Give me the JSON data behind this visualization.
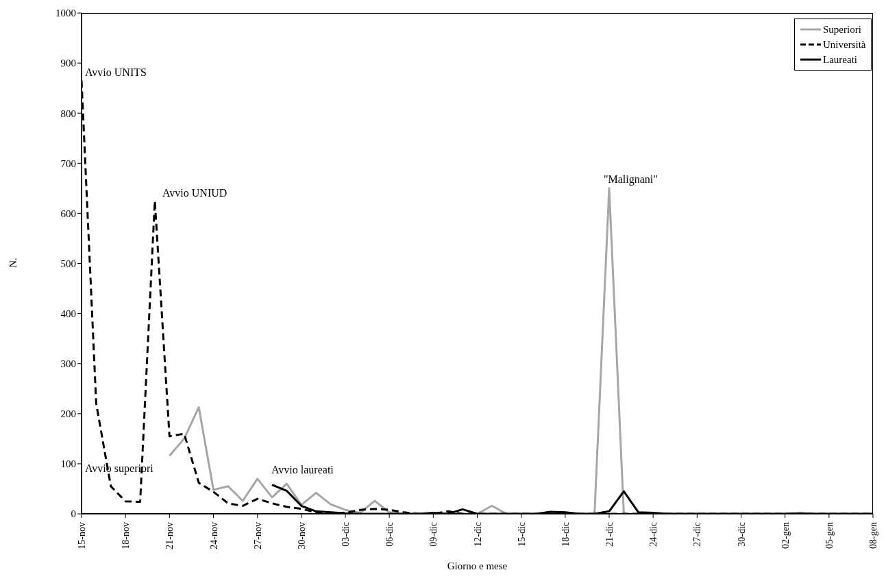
{
  "chart_data": {
    "type": "line",
    "xlabel": "Giorno e mese",
    "ylabel": "N.",
    "categories": [
      "15-nov",
      null,
      null,
      "18-nov",
      null,
      null,
      "21-nov",
      null,
      null,
      "24-nov",
      null,
      null,
      "27-nov",
      null,
      null,
      "30-nov",
      null,
      null,
      "03-dic",
      null,
      null,
      "06-dic",
      null,
      null,
      "09-dic",
      null,
      null,
      "12-dic",
      null,
      null,
      "15-dic",
      null,
      null,
      "18-dic",
      null,
      null,
      "21-dic",
      null,
      null,
      "24-dic",
      null,
      null,
      "27-dic",
      null,
      null,
      "30-dic",
      null,
      null,
      "02-gen",
      null,
      null,
      "05-gen",
      null,
      null,
      "08-gen"
    ],
    "series": [
      {
        "name": "Superiori",
        "color": "#a6a6a6",
        "line_style": "solid",
        "values": [
          null,
          null,
          null,
          null,
          null,
          null,
          116,
          150,
          213,
          48,
          55,
          26,
          70,
          33,
          60,
          18,
          42,
          19,
          8,
          2,
          26,
          3,
          0,
          0,
          0,
          0,
          0,
          0,
          16,
          0,
          0,
          0,
          2,
          0,
          0,
          0,
          650,
          0,
          0,
          0,
          0,
          0,
          0,
          0,
          0,
          0,
          0,
          0,
          0,
          0,
          0,
          0,
          0,
          0,
          0
        ]
      },
      {
        "name": "Università",
        "color": "#000000",
        "line_style": "dashed",
        "values": [
          865,
          220,
          55,
          25,
          24,
          625,
          155,
          160,
          62,
          44,
          21,
          16,
          30,
          21,
          14,
          10,
          3,
          2,
          2,
          8,
          10,
          8,
          3,
          0,
          0,
          5,
          0,
          0,
          0,
          0,
          0,
          0,
          0,
          0,
          0,
          0,
          0,
          0,
          0,
          0,
          0,
          0,
          0,
          0,
          0,
          0,
          0,
          0,
          0,
          0,
          0,
          0,
          0,
          0,
          0
        ]
      },
      {
        "name": "Laureati",
        "color": "#000000",
        "line_style": "solid",
        "values": [
          null,
          null,
          null,
          null,
          null,
          null,
          null,
          null,
          null,
          null,
          null,
          null,
          null,
          58,
          46,
          16,
          5,
          3,
          1,
          0,
          0,
          0,
          0,
          0,
          2,
          0,
          9,
          0,
          0,
          0,
          0,
          0,
          4,
          3,
          0,
          0,
          5,
          45,
          3,
          2,
          0,
          0,
          0,
          0,
          0,
          0,
          0,
          0,
          0,
          1,
          0,
          0,
          0,
          0,
          0
        ]
      }
    ],
    "ylim": [
      0,
      1000
    ],
    "yticks": [
      0,
      100,
      200,
      300,
      400,
      500,
      600,
      700,
      800,
      900,
      1000
    ],
    "grid": false,
    "legend": "top right",
    "marker": "none",
    "annotations": [
      "Avvio UNITS",
      "Avvio UNIUD",
      "Avvio superiori",
      "Avvio laureati",
      {
        "text": "\"Malignani\"",
        "x": "21-dic",
        "y": 650
      }
    ]
  }
}
